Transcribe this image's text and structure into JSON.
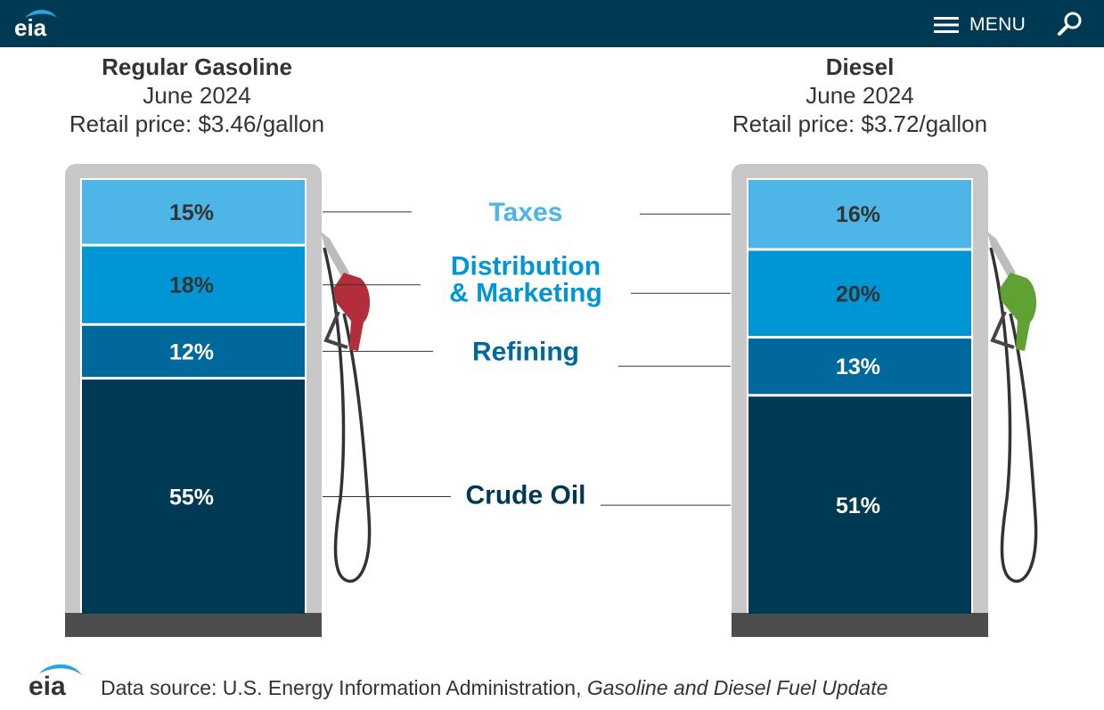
{
  "header": {
    "logo_text": "eia",
    "menu_label": "MENU",
    "menu_icon": "hamburger-icon",
    "search_icon": "search-icon"
  },
  "chart_data": [
    {
      "type": "bar",
      "stacked": true,
      "title": "Regular Gasoline",
      "subtitle": "June 2024",
      "price_label": "Retail price: $3.46/gallon",
      "categories": [
        "Taxes",
        "Distribution & Marketing",
        "Refining",
        "Crude Oil"
      ],
      "values": [
        15,
        18,
        12,
        55
      ],
      "value_labels": [
        "15%",
        "18%",
        "12%",
        "55%"
      ],
      "nozzle_color": "#b22e3a"
    },
    {
      "type": "bar",
      "stacked": true,
      "title": "Diesel",
      "subtitle": "June 2024",
      "price_label": "Retail price: $3.72/gallon",
      "categories": [
        "Taxes",
        "Distribution & Marketing",
        "Refining",
        "Crude Oil"
      ],
      "values": [
        16,
        20,
        13,
        51
      ],
      "value_labels": [
        "16%",
        "20%",
        "13%",
        "51%"
      ],
      "nozzle_color": "#5fa133"
    }
  ],
  "legend": {
    "categories": [
      {
        "line1": "Taxes",
        "line2": "",
        "color": "#4db6e6"
      },
      {
        "line1": "Distribution",
        "line2": "& Marketing",
        "color": "#0096d6"
      },
      {
        "line1": "Refining",
        "line2": "",
        "color": "#00689a"
      },
      {
        "line1": "Crude Oil",
        "line2": "",
        "color": "#003953"
      }
    ]
  },
  "colors": {
    "header_bg": "#003953",
    "pump_frame": "#c8c8c8",
    "pump_base": "#4d4d4d",
    "segments": [
      "#4db6e6",
      "#0096d6",
      "#00689a",
      "#003953"
    ],
    "label_text": [
      "#333333",
      "#333333",
      "#ffffff",
      "#ffffff"
    ]
  },
  "footer": {
    "logo_text": "eia",
    "source_prefix": "Data source: U.S. Energy Information Administration, ",
    "source_title": "Gasoline and Diesel Fuel Update"
  }
}
